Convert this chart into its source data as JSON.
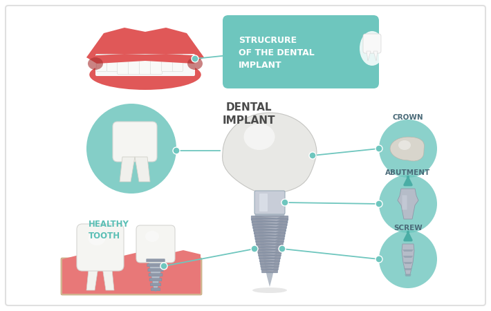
{
  "bg_color": "#ffffff",
  "border_color": "#e0e0e0",
  "teal": "#6ec6be",
  "teal_dark": "#4aada5",
  "arrow_color": "#5bbfb5",
  "title": "DENTAL\nIMPLANT",
  "header_text": "STRUCRURE\nOF THE DENTAL\nIMPLANT",
  "label_crown": "CROWN",
  "label_abutment": "ABUTMENT",
  "label_screw": "SCREW",
  "label_healthy": "HEALTHY\nTOOTH",
  "metal_gray": "#b0b8c8",
  "metal_mid": "#9098a8",
  "metal_light": "#d0d8e8",
  "metal_dark": "#7888a0",
  "gum_pink": "#e87878",
  "bone_color": "#d4b896",
  "tooth_white": "#f5f5f2",
  "tooth_shadow": "#d8d8d5",
  "lip_red": "#e05858",
  "lip_dark": "#c04040"
}
